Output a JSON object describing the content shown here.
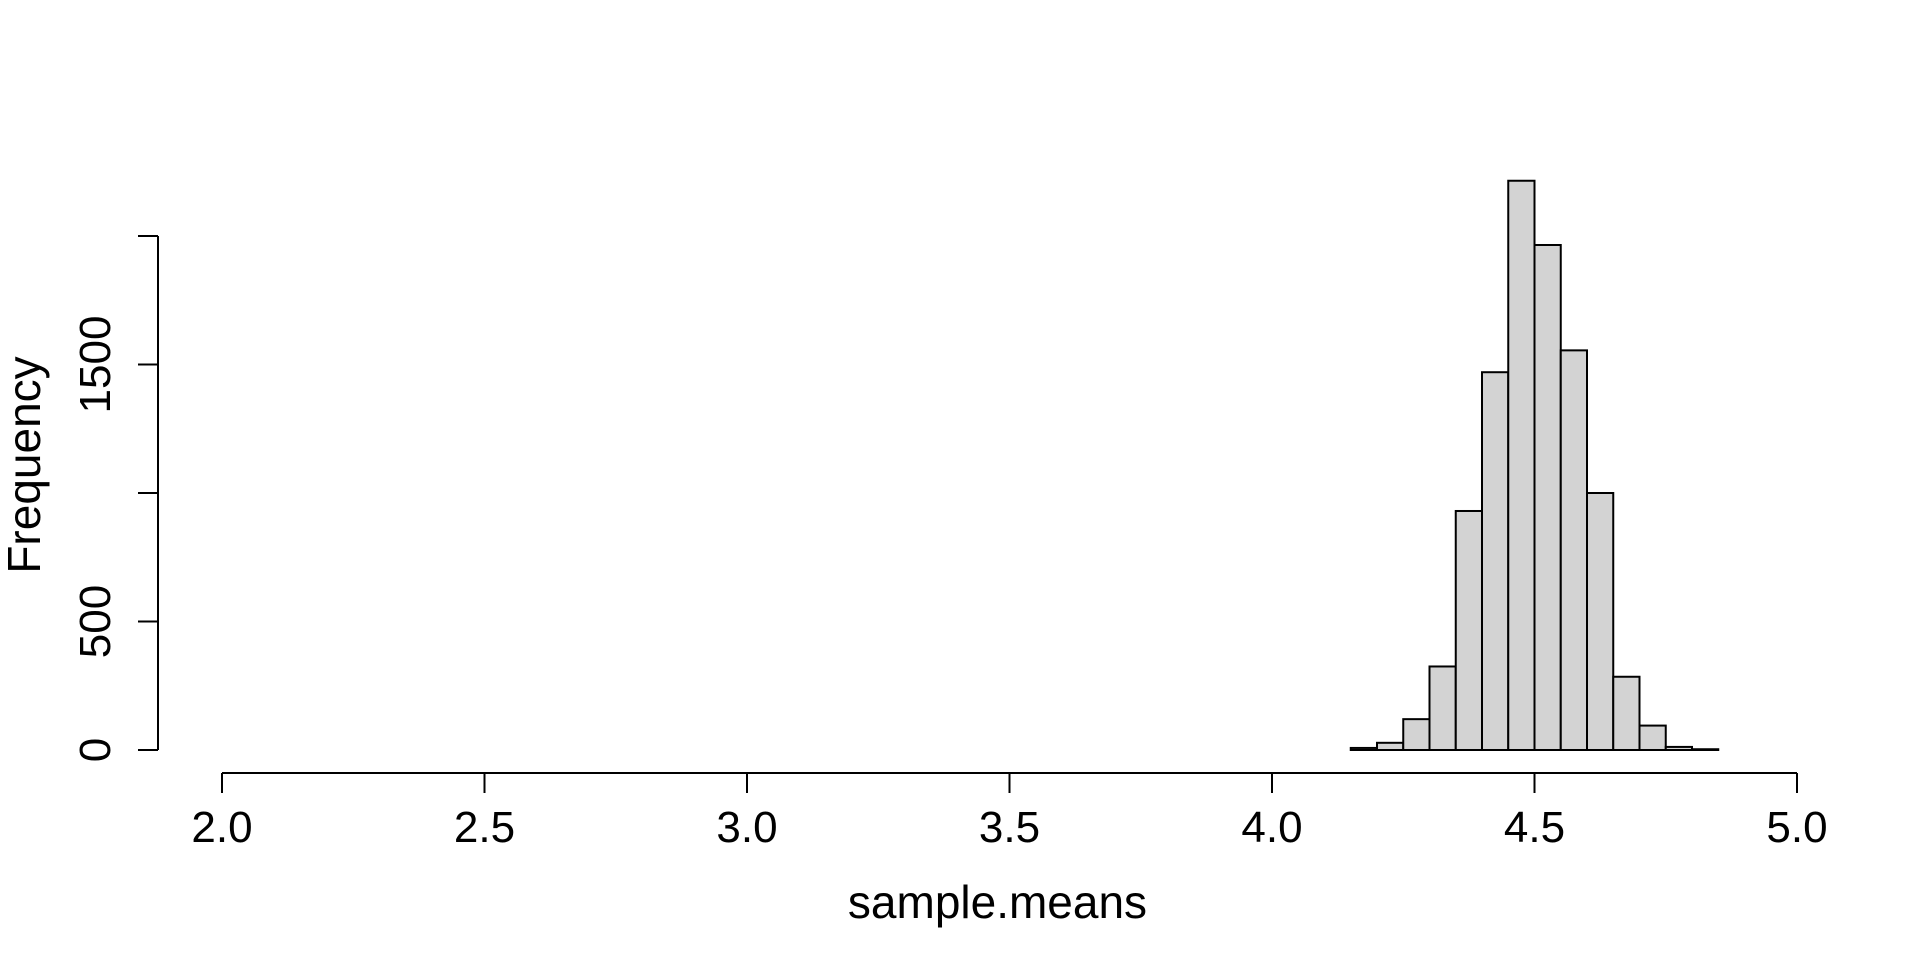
{
  "chart_data": {
    "type": "bar",
    "title": "",
    "xlabel": "sample.means",
    "ylabel": "Frequency",
    "xlim": [
      2.0,
      5.0
    ],
    "ylim": [
      0,
      2000
    ],
    "x_ticks": [
      "2.0",
      "2.5",
      "3.0",
      "3.5",
      "4.0",
      "4.5",
      "5.0"
    ],
    "y_ticks": [
      0,
      500,
      1000,
      1500,
      2000
    ],
    "y_tick_labels": [
      "0",
      "500",
      "",
      "1500",
      ""
    ],
    "bar_fill": "#d3d3d3",
    "bar_stroke": "#000000",
    "bin_width": 0.05,
    "bins": [
      {
        "x0": 4.15,
        "x1": 4.2,
        "count": 8
      },
      {
        "x0": 4.2,
        "x1": 4.25,
        "count": 28
      },
      {
        "x0": 4.25,
        "x1": 4.3,
        "count": 120
      },
      {
        "x0": 4.3,
        "x1": 4.35,
        "count": 325
      },
      {
        "x0": 4.35,
        "x1": 4.4,
        "count": 930
      },
      {
        "x0": 4.4,
        "x1": 4.45,
        "count": 1470
      },
      {
        "x0": 4.45,
        "x1": 4.5,
        "count": 2215
      },
      {
        "x0": 4.5,
        "x1": 4.55,
        "count": 1965
      },
      {
        "x0": 4.55,
        "x1": 4.6,
        "count": 1555
      },
      {
        "x0": 4.6,
        "x1": 4.65,
        "count": 1000
      },
      {
        "x0": 4.65,
        "x1": 4.7,
        "count": 285
      },
      {
        "x0": 4.7,
        "x1": 4.75,
        "count": 95
      },
      {
        "x0": 4.75,
        "x1": 4.8,
        "count": 12
      },
      {
        "x0": 4.8,
        "x1": 4.85,
        "count": 3
      }
    ]
  }
}
